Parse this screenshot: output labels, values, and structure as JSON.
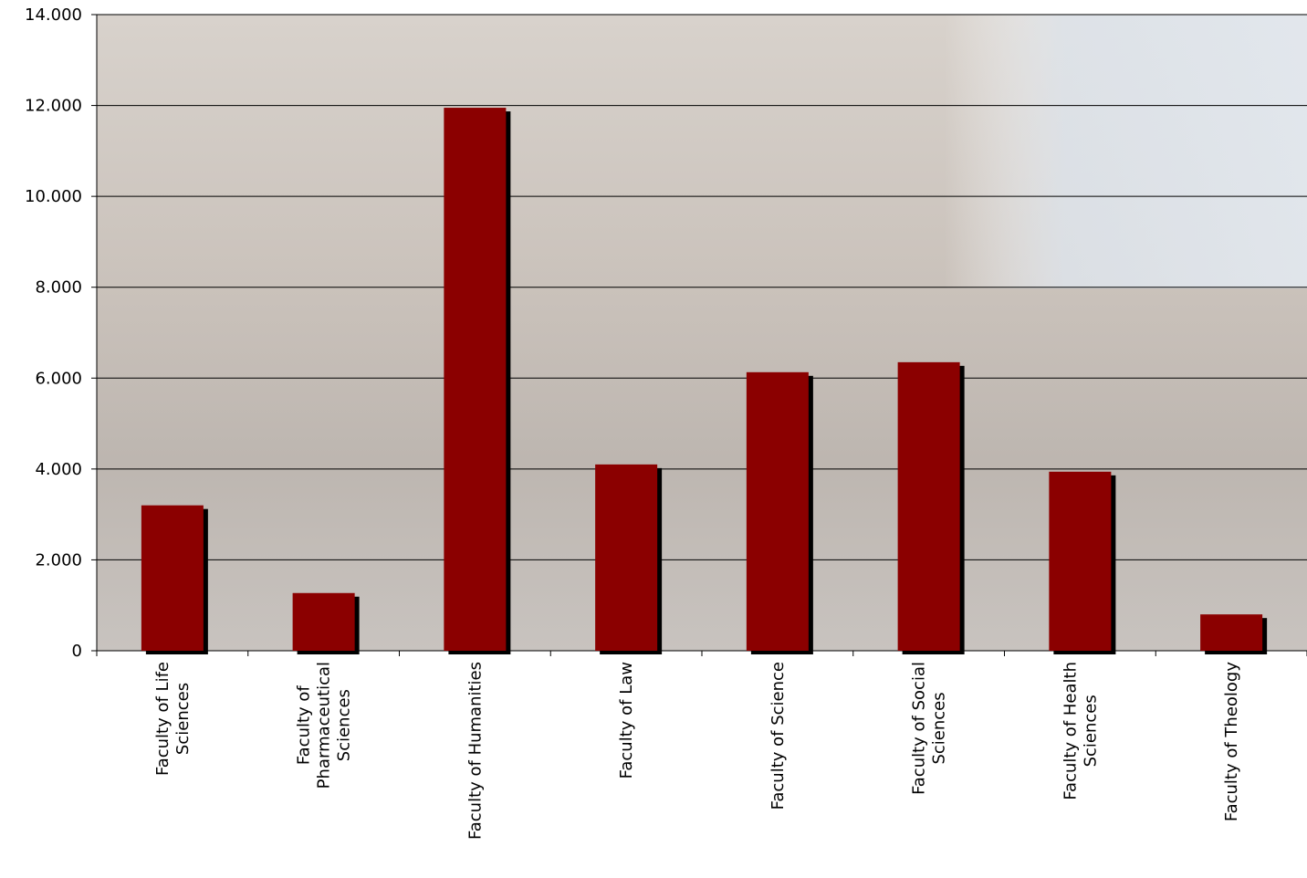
{
  "chart_data": {
    "type": "bar",
    "categories": [
      "Faculty of Life\nSciences",
      "Faculty of\nPharmaceutical\nSciences",
      "Faculty of Humanities",
      "Faculty of Law",
      "Faculty of Science",
      "Faculty of Social\nSciences",
      "Faculty of Health\nSciences",
      "Faculty of Theology"
    ],
    "values": [
      3200,
      1270,
      11950,
      4100,
      6130,
      6350,
      3940,
      800
    ],
    "color": "#8b0000",
    "ylim": [
      0,
      14000
    ],
    "yticks": [
      0,
      {
        "value": 2000,
        "label": "2.000"
      },
      {
        "value": 4000,
        "label": "4.000"
      },
      {
        "value": 6000,
        "label": "6.000"
      },
      {
        "value": 8000,
        "label": "8.000"
      },
      {
        "value": 10000,
        "label": "10.000"
      },
      {
        "value": 12000,
        "label": "12.000"
      },
      {
        "value": 14000,
        "label": "14.000"
      }
    ],
    "grid": true
  }
}
